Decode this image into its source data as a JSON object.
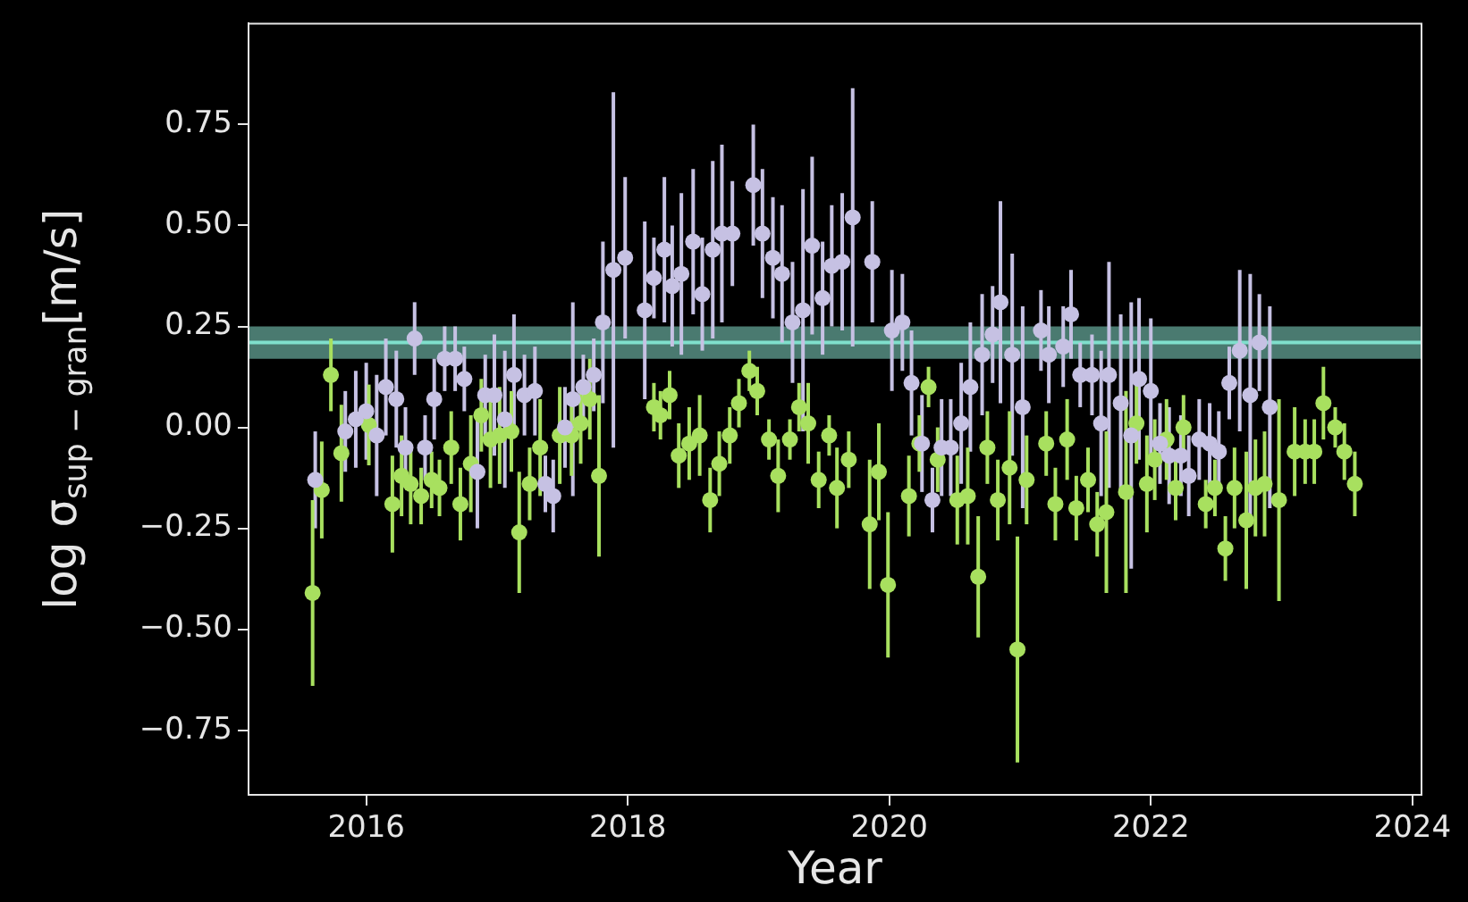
{
  "chart_data": {
    "type": "scatter",
    "xlabel": "Year",
    "ylabel": "log σ$_{sup − gran}$[m/s]",
    "xlim": [
      2015.1,
      2024.07
    ],
    "xticks": [
      2016,
      2018,
      2020,
      2022,
      2024
    ],
    "ylim": [
      -0.91,
      1.0
    ],
    "yticks": [
      {
        "value": -0.75,
        "label": "−0.75"
      },
      {
        "value": -0.5,
        "label": "−0.50"
      },
      {
        "value": -0.25,
        "label": "−0.25"
      },
      {
        "value": 0,
        "label": "0.00"
      },
      {
        "value": 0.25,
        "label": "0.25"
      },
      {
        "value": 0.5,
        "label": "0.50"
      },
      {
        "value": 0.75,
        "label": "0.75"
      }
    ],
    "grid": false,
    "legend": false,
    "marker": "circle",
    "bands": [
      {
        "axis": "y",
        "from": 0.17,
        "to": 0.25,
        "color": "#4a7a70"
      }
    ],
    "ref_lines": [
      {
        "axis": "y",
        "value": 0.21,
        "color": "#7fdfcc"
      }
    ],
    "series": [
      {
        "color": "#c6c1e3",
        "x": [
          2015.61,
          2015.84,
          2015.92,
          2016.0,
          2016.08,
          2016.15,
          2016.23,
          2016.3,
          2016.37,
          2016.45,
          2016.52,
          2016.6,
          2016.68,
          2016.75,
          2016.85,
          2016.91,
          2016.98,
          2017.06,
          2017.13,
          2017.21,
          2017.29,
          2017.37,
          2017.43,
          2017.52,
          2017.58,
          2017.66,
          2017.74,
          2017.81,
          2017.89,
          2017.98,
          2018.13,
          2018.2,
          2018.28,
          2018.34,
          2018.41,
          2018.5,
          2018.57,
          2018.65,
          2018.72,
          2018.8,
          2018.96,
          2019.03,
          2019.11,
          2019.18,
          2019.26,
          2019.34,
          2019.41,
          2019.49,
          2019.56,
          2019.64,
          2019.72,
          2019.87,
          2020.02,
          2020.1,
          2020.17,
          2020.25,
          2020.33,
          2020.4,
          2020.47,
          2020.55,
          2020.62,
          2020.71,
          2020.79,
          2020.85,
          2020.94,
          2021.02,
          2021.16,
          2021.22,
          2021.33,
          2021.39,
          2021.46,
          2021.55,
          2021.62,
          2021.68,
          2021.77,
          2021.85,
          2021.91,
          2022.0,
          2022.07,
          2022.14,
          2022.23,
          2022.29,
          2022.37,
          2022.45,
          2022.52,
          2022.6,
          2022.68,
          2022.76,
          2022.83,
          2022.91
        ],
        "values": [
          -0.13,
          -0.01,
          0.02,
          0.04,
          -0.02,
          0.1,
          0.07,
          -0.05,
          0.22,
          -0.05,
          0.07,
          0.17,
          0.17,
          0.12,
          -0.11,
          0.08,
          0.08,
          0.02,
          0.13,
          0.08,
          0.09,
          -0.14,
          -0.17,
          0.0,
          0.07,
          0.1,
          0.13,
          0.26,
          0.39,
          0.42,
          0.29,
          0.37,
          0.44,
          0.35,
          0.38,
          0.46,
          0.33,
          0.44,
          0.48,
          0.48,
          0.6,
          0.48,
          0.42,
          0.38,
          0.26,
          0.29,
          0.45,
          0.32,
          0.4,
          0.41,
          0.52,
          0.41,
          0.24,
          0.26,
          0.11,
          -0.04,
          -0.18,
          -0.05,
          -0.05,
          0.01,
          0.1,
          0.18,
          0.23,
          0.31,
          0.18,
          0.05,
          0.24,
          0.18,
          0.2,
          0.28,
          0.13,
          0.13,
          0.01,
          0.13,
          0.06,
          -0.02,
          0.12,
          0.09,
          -0.04,
          -0.07,
          -0.07,
          -0.12,
          -0.03,
          -0.04,
          -0.06,
          0.11,
          0.19,
          0.08,
          0.21,
          0.05
        ],
        "errors": [
          0.12,
          0.1,
          0.12,
          0.12,
          0.15,
          0.12,
          0.12,
          0.1,
          0.09,
          0.08,
          0.1,
          0.08,
          0.08,
          0.08,
          0.14,
          0.1,
          0.15,
          0.17,
          0.15,
          0.1,
          0.11,
          0.07,
          0.09,
          0.1,
          0.24,
          0.08,
          0.09,
          0.2,
          0.44,
          0.2,
          0.22,
          0.1,
          0.18,
          0.15,
          0.2,
          0.18,
          0.14,
          0.22,
          0.22,
          0.13,
          0.15,
          0.16,
          0.15,
          0.17,
          0.15,
          0.3,
          0.22,
          0.14,
          0.15,
          0.17,
          0.32,
          0.15,
          0.15,
          0.12,
          0.13,
          0.12,
          0.08,
          0.12,
          0.12,
          0.15,
          0.16,
          0.15,
          0.12,
          0.25,
          0.25,
          0.25,
          0.1,
          0.12,
          0.1,
          0.11,
          0.08,
          0.1,
          0.18,
          0.28,
          0.22,
          0.33,
          0.2,
          0.18,
          0.1,
          0.12,
          0.1,
          0.1,
          0.1,
          0.1,
          0.1,
          0.09,
          0.2,
          0.3,
          0.12,
          0.25
        ]
      },
      {
        "color": "#a8e05f",
        "x": [
          2015.59,
          2015.66,
          2015.73,
          2015.81,
          2016.02,
          2016.2,
          2016.27,
          2016.34,
          2016.42,
          2016.5,
          2016.56,
          2016.65,
          2016.72,
          2016.8,
          2016.88,
          2016.95,
          2017.02,
          2017.11,
          2017.17,
          2017.25,
          2017.33,
          2017.48,
          2017.57,
          2017.64,
          2017.71,
          2017.78,
          2018.2,
          2018.25,
          2018.32,
          2018.39,
          2018.47,
          2018.55,
          2018.63,
          2018.7,
          2018.78,
          2018.85,
          2018.93,
          2018.99,
          2019.08,
          2019.15,
          2019.24,
          2019.31,
          2019.38,
          2019.46,
          2019.54,
          2019.6,
          2019.69,
          2019.85,
          2019.92,
          2019.99,
          2020.15,
          2020.23,
          2020.3,
          2020.37,
          2020.52,
          2020.6,
          2020.68,
          2020.75,
          2020.83,
          2020.92,
          2020.98,
          2021.05,
          2021.2,
          2021.27,
          2021.36,
          2021.43,
          2021.52,
          2021.59,
          2021.66,
          2021.81,
          2021.89,
          2021.97,
          2022.03,
          2022.12,
          2022.19,
          2022.25,
          2022.42,
          2022.49,
          2022.57,
          2022.64,
          2022.73,
          2022.8,
          2022.87,
          2022.98,
          2023.1,
          2023.18,
          2023.25,
          2023.32,
          2023.41,
          2023.48,
          2023.56
        ],
        "values": [
          -0.41,
          -0.155,
          0.13,
          -0.064,
          0.006,
          -0.19,
          -0.12,
          -0.14,
          -0.17,
          -0.13,
          -0.15,
          -0.05,
          -0.19,
          -0.09,
          0.03,
          -0.03,
          -0.02,
          -0.01,
          -0.26,
          -0.14,
          -0.05,
          -0.02,
          -0.02,
          0.01,
          0.07,
          -0.12,
          0.05,
          0.03,
          0.08,
          -0.07,
          -0.04,
          -0.02,
          -0.18,
          -0.09,
          -0.02,
          0.06,
          0.14,
          0.09,
          -0.03,
          -0.12,
          -0.03,
          0.05,
          0.01,
          -0.13,
          -0.02,
          -0.15,
          -0.08,
          -0.24,
          -0.11,
          -0.39,
          -0.17,
          -0.04,
          0.1,
          -0.08,
          -0.18,
          -0.17,
          -0.37,
          -0.05,
          -0.18,
          -0.1,
          -0.55,
          -0.13,
          -0.04,
          -0.19,
          -0.03,
          -0.2,
          -0.13,
          -0.24,
          -0.21,
          -0.16,
          0.01,
          -0.14,
          -0.08,
          -0.03,
          -0.15,
          0.0,
          -0.19,
          -0.15,
          -0.3,
          -0.15,
          -0.23,
          -0.15,
          -0.14,
          -0.18,
          -0.06,
          -0.06,
          -0.06,
          0.06,
          0.0,
          -0.06,
          -0.14
        ],
        "errors": [
          0.23,
          0.12,
          0.09,
          0.12,
          0.1,
          0.12,
          0.1,
          0.1,
          0.07,
          0.07,
          0.07,
          0.09,
          0.09,
          0.12,
          0.09,
          0.12,
          0.12,
          0.1,
          0.15,
          0.09,
          0.12,
          0.12,
          0.1,
          0.1,
          0.1,
          0.2,
          0.06,
          0.06,
          0.06,
          0.08,
          0.09,
          0.1,
          0.08,
          0.08,
          0.07,
          0.06,
          0.05,
          0.06,
          0.05,
          0.09,
          0.05,
          0.06,
          0.1,
          0.07,
          0.05,
          0.1,
          0.07,
          0.16,
          0.12,
          0.18,
          0.1,
          0.07,
          0.05,
          0.08,
          0.11,
          0.12,
          0.15,
          0.09,
          0.1,
          0.14,
          0.28,
          0.11,
          0.08,
          0.09,
          0.1,
          0.08,
          0.08,
          0.08,
          0.2,
          0.25,
          0.1,
          0.12,
          0.1,
          0.1,
          0.08,
          0.08,
          0.06,
          0.07,
          0.08,
          0.1,
          0.17,
          0.12,
          0.13,
          0.25,
          0.11,
          0.08,
          0.08,
          0.09,
          0.05,
          0.07,
          0.08
        ]
      }
    ]
  }
}
